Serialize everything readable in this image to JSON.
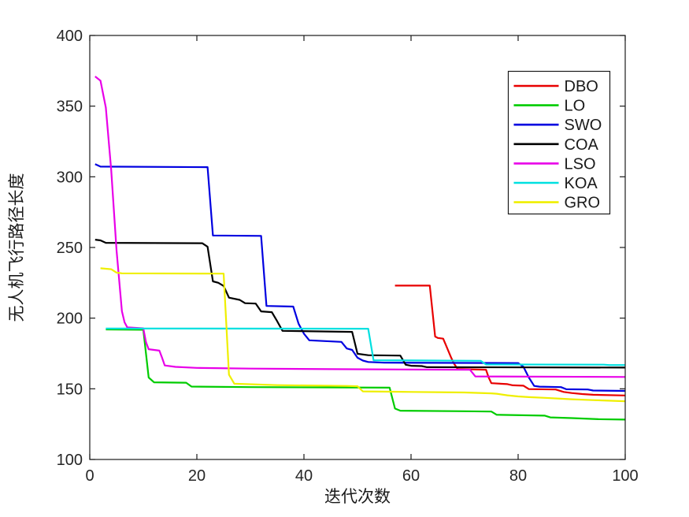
{
  "chart_data": {
    "type": "line",
    "title": "",
    "xlabel": "迭代次数",
    "ylabel": "无人机飞行路径长度",
    "xlim": [
      0,
      100
    ],
    "ylim": [
      100,
      400
    ],
    "xticks": [
      0,
      20,
      40,
      60,
      80,
      100
    ],
    "yticks": [
      100,
      150,
      200,
      250,
      300,
      350,
      400
    ],
    "grid": false,
    "box": true,
    "axis_color": "#1a1a1a",
    "tick_label_color": "#262626",
    "background_color": "#ffffff",
    "legend_position": "upper-right",
    "legend_border_color": "#1a1a1a",
    "series": [
      {
        "name": "DBO",
        "color": "#e80000",
        "points": [
          [
            57,
            223
          ],
          [
            63.5,
            223
          ],
          [
            64,
            205
          ],
          [
            64.5,
            187
          ],
          [
            65,
            186
          ],
          [
            66,
            185.5
          ],
          [
            66.5,
            181
          ],
          [
            67.5,
            172
          ],
          [
            68,
            168
          ],
          [
            68.7,
            164
          ],
          [
            74,
            163.5
          ],
          [
            74.5,
            158
          ],
          [
            75,
            154
          ],
          [
            78,
            153.3
          ],
          [
            79,
            152.5
          ],
          [
            81,
            152.2
          ],
          [
            82,
            149.8
          ],
          [
            87,
            149.5
          ],
          [
            88.5,
            147.8
          ],
          [
            90,
            147
          ],
          [
            92,
            146.3
          ],
          [
            94,
            145.8
          ],
          [
            100,
            145.3
          ]
        ]
      },
      {
        "name": "LO",
        "color": "#00cc00",
        "points": [
          [
            3,
            192
          ],
          [
            10,
            191.8
          ],
          [
            11,
            158
          ],
          [
            12,
            154.6
          ],
          [
            18,
            154.3
          ],
          [
            19,
            151.6
          ],
          [
            30,
            151.2
          ],
          [
            56,
            150.8
          ],
          [
            57,
            136
          ],
          [
            58,
            134.5
          ],
          [
            70,
            134.1
          ],
          [
            75,
            133.9
          ],
          [
            76,
            131.6
          ],
          [
            85,
            131
          ],
          [
            86,
            129.8
          ],
          [
            90,
            129.3
          ],
          [
            95,
            128.5
          ],
          [
            100,
            128.2
          ]
        ]
      },
      {
        "name": "SWO",
        "color": "#0000e0",
        "points": [
          [
            1,
            309
          ],
          [
            2,
            307.2
          ],
          [
            22,
            306.8
          ],
          [
            23,
            258.5
          ],
          [
            32,
            258.2
          ],
          [
            33,
            208.6
          ],
          [
            38,
            208.2
          ],
          [
            39,
            196
          ],
          [
            40,
            189
          ],
          [
            41,
            184.3
          ],
          [
            47,
            183.2
          ],
          [
            48,
            178.5
          ],
          [
            49,
            177.5
          ],
          [
            50,
            172
          ],
          [
            51,
            170
          ],
          [
            52,
            169
          ],
          [
            55,
            168.5
          ],
          [
            80,
            168.2
          ],
          [
            81,
            165.5
          ],
          [
            82,
            158
          ],
          [
            83,
            152
          ],
          [
            84,
            151.5
          ],
          [
            88,
            151.2
          ],
          [
            89,
            149.7
          ],
          [
            93,
            149.5
          ],
          [
            94,
            148.8
          ],
          [
            100,
            148.5
          ]
        ]
      },
      {
        "name": "COA",
        "color": "#000000",
        "points": [
          [
            1,
            255.5
          ],
          [
            2,
            255
          ],
          [
            3,
            253.3
          ],
          [
            21,
            253
          ],
          [
            22,
            250.5
          ],
          [
            23,
            226
          ],
          [
            24,
            225
          ],
          [
            25,
            222.8
          ],
          [
            26,
            214.5
          ],
          [
            28,
            212.9
          ],
          [
            29,
            210.6
          ],
          [
            31,
            210.3
          ],
          [
            32,
            204.8
          ],
          [
            34,
            204.2
          ],
          [
            35,
            197.8
          ],
          [
            36,
            191
          ],
          [
            49,
            190.3
          ],
          [
            50,
            174.8
          ],
          [
            52,
            173.8
          ],
          [
            58,
            173.5
          ],
          [
            59,
            167
          ],
          [
            60,
            166.3
          ],
          [
            62,
            166.1
          ],
          [
            63,
            165.3
          ],
          [
            100,
            165
          ]
        ]
      },
      {
        "name": "LSO",
        "color": "#e800e8",
        "points": [
          [
            1,
            371
          ],
          [
            2,
            368
          ],
          [
            3,
            349
          ],
          [
            4,
            305
          ],
          [
            5,
            248
          ],
          [
            6,
            205
          ],
          [
            6.5,
            197
          ],
          [
            7,
            193.5
          ],
          [
            10,
            192.8
          ],
          [
            10.5,
            183
          ],
          [
            11,
            178
          ],
          [
            13,
            177
          ],
          [
            13.5,
            172
          ],
          [
            14,
            166.5
          ],
          [
            16,
            165.5
          ],
          [
            20,
            164.8
          ],
          [
            30,
            164.3
          ],
          [
            45,
            163.9
          ],
          [
            60,
            163.6
          ],
          [
            71,
            163.5
          ],
          [
            72,
            158.8
          ],
          [
            100,
            158.4
          ]
        ]
      },
      {
        "name": "KOA",
        "color": "#00e0e0",
        "points": [
          [
            3,
            192.7
          ],
          [
            52,
            192.5
          ],
          [
            53,
            170.2
          ],
          [
            73,
            169.8
          ],
          [
            74,
            167.2
          ],
          [
            96,
            167.1
          ],
          [
            97,
            166.8
          ],
          [
            100,
            166.8
          ]
        ]
      },
      {
        "name": "GRO",
        "color": "#efef00",
        "points": [
          [
            2,
            235.3
          ],
          [
            4,
            234.6
          ],
          [
            5,
            232.2
          ],
          [
            6,
            231.7
          ],
          [
            25,
            231.5
          ],
          [
            26,
            160
          ],
          [
            27,
            153.6
          ],
          [
            35,
            152.6
          ],
          [
            48,
            152
          ],
          [
            50,
            151.8
          ],
          [
            51,
            148.2
          ],
          [
            60,
            147.8
          ],
          [
            70,
            147.4
          ],
          [
            75,
            146.8
          ],
          [
            76,
            146.5
          ],
          [
            78,
            145.4
          ],
          [
            80,
            144.6
          ],
          [
            82,
            144.1
          ],
          [
            85,
            143.6
          ],
          [
            88,
            143
          ],
          [
            90,
            142.6
          ],
          [
            94,
            142
          ],
          [
            100,
            141.2
          ]
        ]
      }
    ]
  }
}
